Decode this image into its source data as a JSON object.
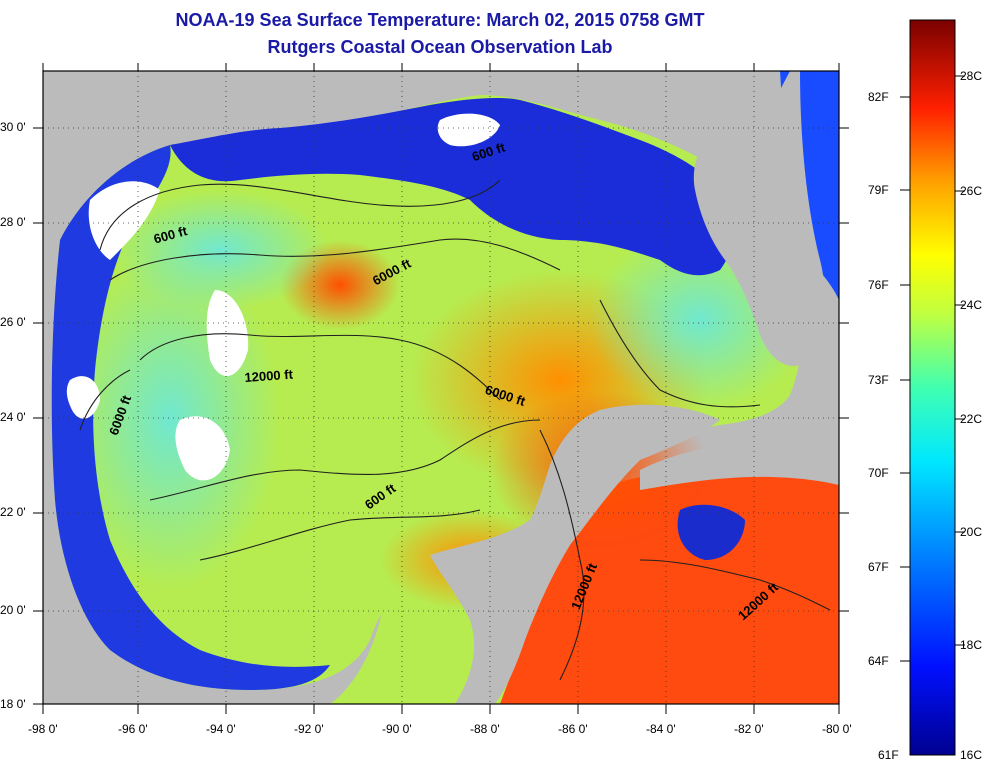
{
  "title": "NOAA-19 Sea Surface Temperature:  March 02, 2015 0758 GMT",
  "subtitle": "Rutgers Coastal Ocean Observation Lab",
  "lon_ticks": [
    "-98 0'",
    "-96 0'",
    "-94 0'",
    "-92 0'",
    "-90 0'",
    "-88 0'",
    "-86 0'",
    "-84 0'",
    "-82 0'",
    "-80 0'"
  ],
  "lat_ticks": [
    "30 0'",
    "28 0'",
    "26 0'",
    "24 0'",
    "22 0'",
    "20 0'",
    "18 0'"
  ],
  "colorbar": {
    "f_labels": [
      "82F",
      "79F",
      "76F",
      "73F",
      "70F",
      "67F",
      "64F",
      "61F"
    ],
    "c_labels": [
      "28C",
      "26C",
      "24C",
      "22C",
      "20C",
      "18C",
      "16C"
    ]
  },
  "contours": [
    "600 ft",
    "600 ft",
    "6000 ft",
    "12000 ft",
    "6000 ft",
    "6000 ft",
    "600 ft",
    "12000 ft",
    "12000 ft"
  ]
}
